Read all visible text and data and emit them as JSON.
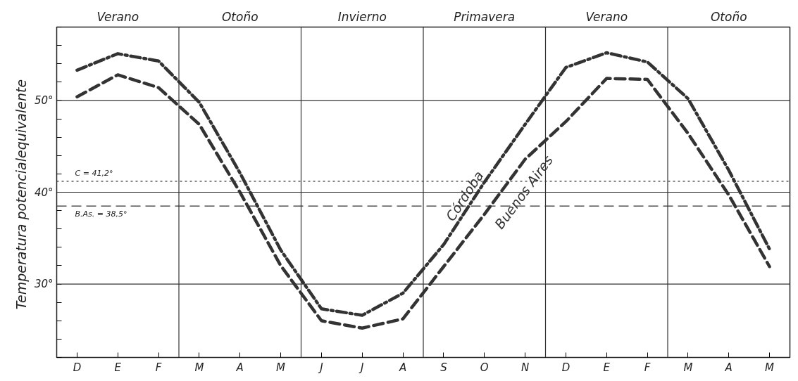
{
  "chart_data": {
    "type": "line",
    "ylabel": "Temperatura  potencialequivalente",
    "categories": [
      "D",
      "E",
      "F",
      "M",
      "A",
      "M",
      "J",
      "J",
      "A",
      "S",
      "O",
      "N",
      "D",
      "E",
      "F",
      "M",
      "A",
      "M"
    ],
    "annotations": [
      "Verano",
      "Otoño",
      "Invierno",
      "Primavera",
      "Verano",
      "Otoño"
    ],
    "ylim": [
      22,
      58
    ],
    "yticks": [
      {
        "value": 22,
        "label": null
      },
      {
        "value": 24,
        "label": null
      },
      {
        "value": 26,
        "label": null
      },
      {
        "value": 28,
        "label": null
      },
      {
        "value": 30,
        "label": "30°"
      },
      {
        "value": 32,
        "label": null
      },
      {
        "value": 34,
        "label": null
      },
      {
        "value": 36,
        "label": null
      },
      {
        "value": 38,
        "label": null
      },
      {
        "value": 40,
        "label": "40°"
      },
      {
        "value": 42,
        "label": null
      },
      {
        "value": 44,
        "label": null
      },
      {
        "value": 46,
        "label": null
      },
      {
        "value": 48,
        "label": null
      },
      {
        "value": 50,
        "label": "50°"
      },
      {
        "value": 52,
        "label": null
      },
      {
        "value": 54,
        "label": null
      },
      {
        "value": 56,
        "label": null
      },
      {
        "value": 58,
        "label": null
      }
    ],
    "grid": false,
    "marker": "none",
    "series": [
      {
        "name": "Córdoba",
        "color": "#333333",
        "line_style": "dashdot",
        "values": [
          53.3,
          55.1,
          54.3,
          49.8,
          42.1,
          33.7,
          27.3,
          26.6,
          29.0,
          34.3,
          41.1,
          47.4,
          53.6,
          55.2,
          54.2,
          50.2,
          42.4,
          33.8
        ]
      },
      {
        "name": "Buenos Aires",
        "color": "#333333",
        "line_style": "dashed",
        "values": [
          50.4,
          52.8,
          51.4,
          47.4,
          40.0,
          32.0,
          26.0,
          25.2,
          26.2,
          31.9,
          37.6,
          43.6,
          47.7,
          52.4,
          52.3,
          46.4,
          39.7,
          31.9
        ]
      }
    ],
    "ref_lines": [
      {
        "axis": "y",
        "value": 41.2,
        "label": "C = 41,2°",
        "line_style": "dotted",
        "color": "#333333"
      },
      {
        "axis": "y",
        "value": 38.5,
        "label": "B.As. = 38,5°",
        "line_style": "dashed",
        "color": "#333333"
      },
      {
        "axis": "y",
        "value": 30,
        "label": null,
        "line_style": "solid",
        "color": "#333333"
      },
      {
        "axis": "y",
        "value": 40,
        "label": null,
        "line_style": "solid",
        "color": "#333333"
      },
      {
        "axis": "y",
        "value": 50,
        "label": null,
        "line_style": "solid",
        "color": "#333333"
      }
    ]
  }
}
